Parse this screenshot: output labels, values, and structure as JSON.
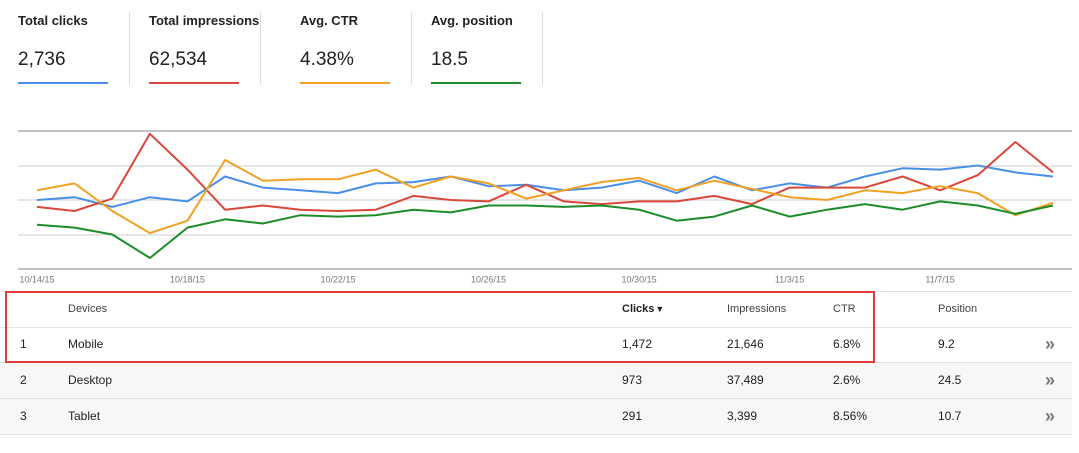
{
  "chart_data": {
    "type": "line",
    "series": [
      {
        "name": "Total clicks",
        "total": "2,736",
        "color": "#4a8fe7",
        "values": [
          50,
          52,
          45,
          52,
          49,
          67,
          59,
          57,
          55,
          62,
          63,
          67,
          60,
          61,
          57,
          59,
          64,
          55,
          67,
          57,
          62,
          59,
          67,
          73,
          72,
          75,
          70,
          67
        ]
      },
      {
        "name": "Total impressions",
        "total": "62,534",
        "color": "#d9483b",
        "values": [
          45,
          42,
          51,
          98,
          72,
          43,
          46,
          43,
          42,
          43,
          53,
          50,
          49,
          61,
          49,
          47,
          49,
          49,
          53,
          47,
          59,
          59,
          59,
          67,
          57,
          68,
          92,
          70
        ]
      },
      {
        "name": "Avg. CTR",
        "total": "4.38%",
        "color": "#f2a024",
        "values": [
          57,
          62,
          42,
          26,
          35,
          79,
          64,
          65,
          65,
          72,
          59,
          67,
          62,
          51,
          57,
          63,
          66,
          57,
          64,
          58,
          52,
          50,
          57,
          55,
          60,
          55,
          39,
          48
        ]
      },
      {
        "name": "Avg. position",
        "total": "18.5",
        "color": "#1e8c2a",
        "values": [
          32,
          30,
          25,
          8,
          30,
          36,
          33,
          39,
          38,
          39,
          43,
          41,
          46,
          46,
          45,
          46,
          43,
          35,
          38,
          46,
          38,
          43,
          47,
          43,
          49,
          46,
          40,
          46
        ]
      }
    ],
    "x": [
      "10/14/15",
      null,
      null,
      null,
      "10/18/15",
      null,
      null,
      null,
      "10/22/15",
      null,
      null,
      null,
      "10/26/15",
      null,
      null,
      null,
      "10/30/15",
      null,
      null,
      null,
      "11/3/15",
      null,
      null,
      null,
      "11/7/15",
      null,
      null,
      null
    ],
    "ylim": [
      0,
      100
    ]
  },
  "table": {
    "header": [
      "",
      "Devices",
      "Clicks",
      "Impressions",
      "CTR",
      "Position"
    ],
    "rows": [
      [
        "1",
        "Mobile",
        "1,472",
        "21,646",
        "6.8%",
        "9.2"
      ],
      [
        "2",
        "Desktop",
        "973",
        "37,489",
        "2.6%",
        "24.5"
      ],
      [
        "3",
        "Tablet",
        "291",
        "3,399",
        "8.56%",
        "10.7"
      ]
    ]
  }
}
